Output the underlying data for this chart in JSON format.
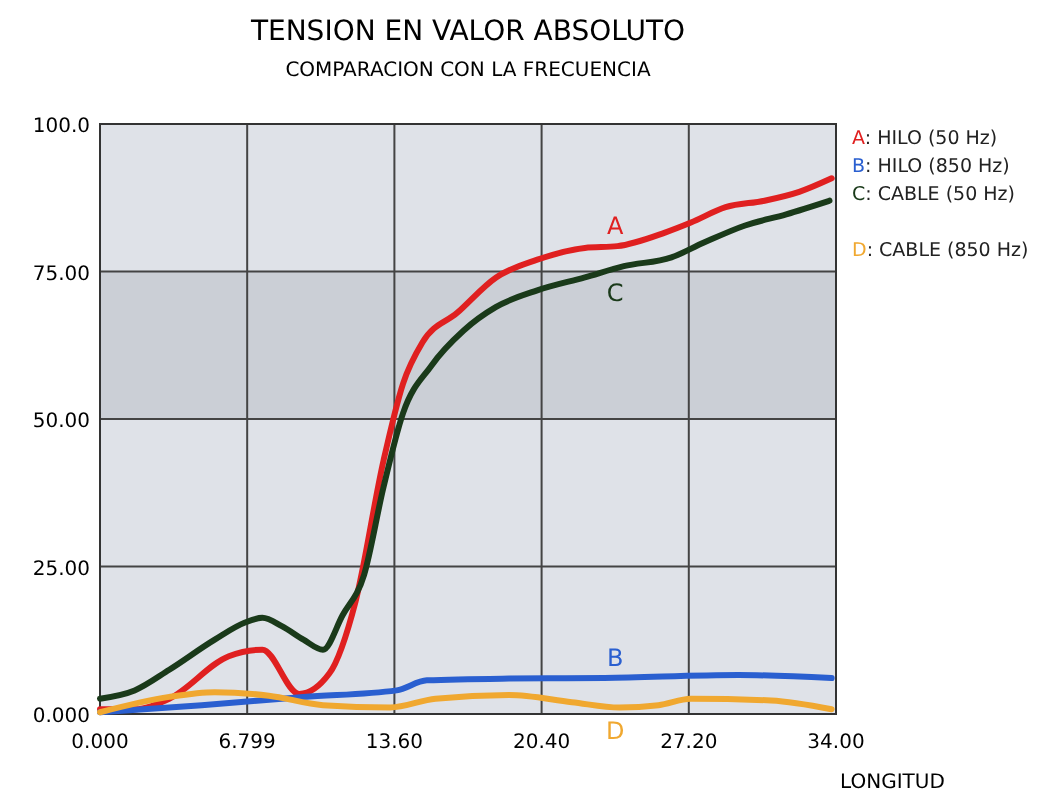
{
  "chart_data": {
    "type": "line",
    "title": "TENSION EN VALOR ABSOLUTO",
    "subtitle": "COMPARACION CON LA FRECUENCIA",
    "xlabel": "LONGITUD",
    "xlim": [
      0,
      34
    ],
    "xticks": [
      {
        "value": 0,
        "label": "0.000"
      },
      {
        "value": 6.799,
        "label": "6.799"
      },
      {
        "value": 13.6,
        "label": "13.60"
      },
      {
        "value": 20.4,
        "label": "20.40"
      },
      {
        "value": 27.2,
        "label": "27.20"
      },
      {
        "value": 34,
        "label": "34.00"
      }
    ],
    "ylim": [
      0,
      100
    ],
    "yticks": [
      {
        "value": 0,
        "label": "0.000"
      },
      {
        "value": 25,
        "label": "25.00"
      },
      {
        "value": 50,
        "label": "50.00"
      },
      {
        "value": 75,
        "label": "75.00"
      },
      {
        "value": 100,
        "label": "100.0"
      }
    ],
    "grid": true,
    "legend": "top right",
    "marker": "none",
    "line_style": "solid",
    "series": [
      {
        "name": "A: HILO (50 Hz)",
        "color": "#e02020",
        "x": [
          0,
          1.6,
          3.2,
          5.95,
          7.5,
          9.2,
          10.6,
          11.8,
          13.1,
          14,
          14.9,
          16.5,
          18.3,
          20.2,
          22.4,
          23.9,
          26.1,
          27.3,
          28.9,
          30.7,
          32.3,
          33.8
        ],
        "values": [
          0.8,
          0.8,
          2.6,
          9.8,
          10.9,
          3.4,
          6.9,
          19,
          43,
          56,
          63,
          68,
          74,
          77,
          79,
          79.3,
          81.6,
          83.3,
          85.9,
          87,
          88.5,
          90.8
        ]
      },
      {
        "name": "B: HILO (850 Hz)",
        "color": "#2a5fd0",
        "x": [
          0,
          4.7,
          9.4,
          13.7,
          15.1,
          18.9,
          23.3,
          29.5,
          33.8
        ],
        "values": [
          0.3,
          1.5,
          2.9,
          4,
          5.7,
          6,
          6.1,
          6.6,
          6.1
        ]
      },
      {
        "name": "C: CABLE (50 Hz)",
        "color": "#1a3a1a",
        "x": [
          0,
          1.6,
          3.2,
          5.3,
          6.7,
          7.5,
          8.4,
          9.4,
          10.3,
          11.2,
          12.2,
          13.1,
          14,
          15.3,
          16.8,
          18.3,
          20.2,
          22.4,
          24.2,
          26.4,
          27.9,
          29.8,
          31.7,
          33.7
        ],
        "values": [
          2.6,
          4,
          7.5,
          12.6,
          15.5,
          16.3,
          14.9,
          12.6,
          10.9,
          16.7,
          23.6,
          38.5,
          51,
          59,
          65,
          69,
          71.8,
          74,
          75.9,
          77.4,
          79.9,
          82.8,
          84.7,
          87
        ]
      },
      {
        "name": "D: CABLE (850 Hz)",
        "color": "#f0a830",
        "x": [
          0,
          3.2,
          5.3,
          7.8,
          10.3,
          13.4,
          15.5,
          18.9,
          21.8,
          24,
          25.8,
          27.3,
          31,
          33.8
        ],
        "values": [
          0.3,
          2.9,
          3.7,
          3.1,
          1.5,
          1.1,
          2.6,
          3.2,
          2,
          1.1,
          1.5,
          2.6,
          2.3,
          0.8
        ]
      }
    ],
    "annotations": [
      "A",
      "B",
      "C",
      "D"
    ]
  }
}
